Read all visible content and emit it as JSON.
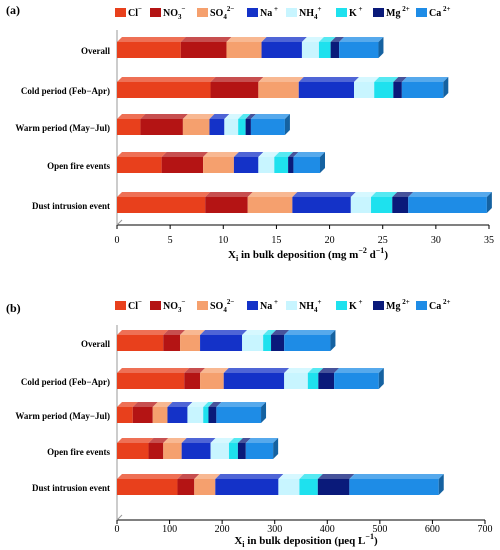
{
  "chart_data": [
    {
      "type": "bar",
      "orientation": "horizontal",
      "stacked": true,
      "panel_label": "(a)",
      "categories": [
        "Overall",
        "Cold period (Feb−Apr)",
        "Warm period (May−Jul)",
        "Open fire events",
        "Dust intrusion event"
      ],
      "xlabel": "X",
      "xlabel_sub": "i",
      "xlabel_rest": " in bulk deposition (mg m",
      "xlabel_sup": "−2",
      "xlabel_mid": " d",
      "xlabel_sup2": "−1",
      "xlabel_end": ")",
      "xlim": [
        0,
        35
      ],
      "xticks": [
        "0",
        "5",
        "10",
        "15",
        "20",
        "25",
        "30",
        "35"
      ],
      "series": [
        {
          "name": "Cl",
          "sup": "−",
          "values": [
            6.0,
            8.8,
            2.2,
            4.2,
            8.3
          ]
        },
        {
          "name": "NO",
          "sub": "3",
          "sup": "−",
          "values": [
            4.3,
            4.5,
            4.0,
            3.9,
            4.0
          ]
        },
        {
          "name": "SO",
          "sub": "4",
          "sup": "2−",
          "values": [
            3.3,
            3.8,
            2.5,
            2.9,
            4.2
          ]
        },
        {
          "name": "Na",
          "sup": " +",
          "values": [
            3.8,
            5.2,
            1.4,
            2.3,
            5.5
          ]
        },
        {
          "name": "NH",
          "sub": "4",
          "sup": "+",
          "values": [
            1.6,
            1.9,
            1.3,
            1.5,
            1.9
          ]
        },
        {
          "name": "K",
          "sup": " +",
          "values": [
            1.1,
            1.8,
            0.7,
            1.3,
            2.0
          ]
        },
        {
          "name": "Mg",
          "sup": " 2+",
          "values": [
            0.8,
            0.8,
            0.5,
            0.5,
            1.5
          ]
        },
        {
          "name": "Ca",
          "sup": " 2+",
          "values": [
            3.7,
            3.9,
            3.2,
            2.5,
            7.4
          ]
        }
      ]
    },
    {
      "type": "bar",
      "orientation": "horizontal",
      "stacked": true,
      "panel_label": "(b)",
      "categories": [
        "Overall",
        "Cold period (Feb−Apr)",
        "Warm period (May−Jul)",
        "Open fire events",
        "Dust intrusion event"
      ],
      "xlabel": "X",
      "xlabel_sub": "i",
      "xlabel_rest": " in bulk deposition (μeq L",
      "xlabel_sup": "−1",
      "xlabel_end": ")",
      "xlim": [
        0,
        700
      ],
      "xticks": [
        "0",
        "100",
        "200",
        "300",
        "400",
        "500",
        "600",
        "700"
      ],
      "series": [
        {
          "name": "Cl",
          "sup": "−",
          "values": [
            88,
            128,
            30,
            60,
            115
          ]
        },
        {
          "name": "NO",
          "sub": "3",
          "sup": "−",
          "values": [
            32,
            30,
            38,
            28,
            32
          ]
        },
        {
          "name": "SO",
          "sub": "4",
          "sup": "2−",
          "values": [
            38,
            45,
            28,
            35,
            40
          ]
        },
        {
          "name": "Na",
          "sup": " +",
          "values": [
            80,
            115,
            38,
            55,
            120
          ]
        },
        {
          "name": "NH",
          "sub": "4",
          "sup": "+",
          "values": [
            40,
            45,
            30,
            35,
            40
          ]
        },
        {
          "name": "K",
          "sup": " +",
          "values": [
            15,
            20,
            10,
            17,
            35
          ]
        },
        {
          "name": "Mg",
          "sup": " 2+",
          "values": [
            25,
            30,
            15,
            15,
            60
          ]
        },
        {
          "name": "Ca",
          "sup": " 2+",
          "values": [
            88,
            85,
            85,
            52,
            170
          ]
        }
      ]
    }
  ],
  "colors": [
    "#e8401c",
    "#b41414",
    "#f5a06e",
    "#1432c8",
    "#c8f5ff",
    "#1ee1ee",
    "#0a1a7a",
    "#1e8ce6"
  ]
}
